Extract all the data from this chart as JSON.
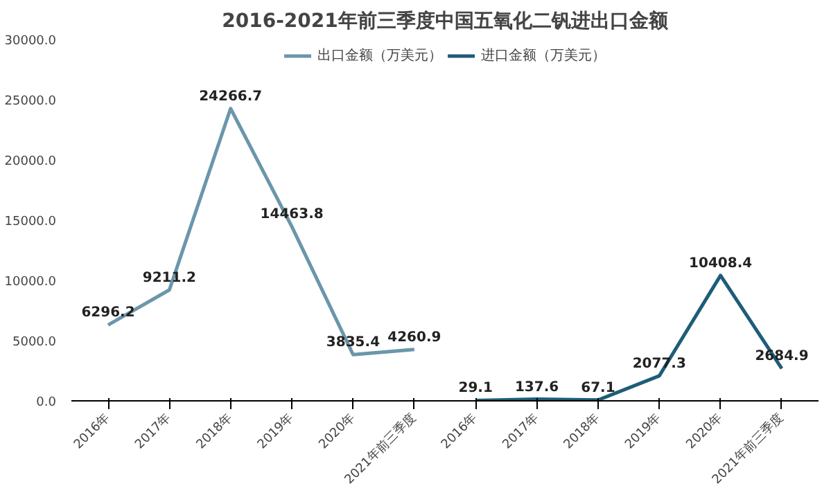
{
  "chart_data": {
    "type": "line",
    "title": "2016-2021年前三季度中国五氧化二钒进出口金额",
    "categories": [
      "2016年",
      "2017年",
      "2018年",
      "2019年",
      "2020年",
      "2021年前三季度",
      "2016年",
      "2017年",
      "2018年",
      "2019年",
      "2020年",
      "2021年前三季度"
    ],
    "series": [
      {
        "name": "出口金额（万美元）",
        "color": "#6b96ab",
        "values": [
          6296.2,
          9211.2,
          24266.7,
          14463.8,
          3835.4,
          4260.9,
          null,
          null,
          null,
          null,
          null,
          null
        ],
        "value_labels": [
          "6296.2",
          "9211.2",
          "24266.7",
          "14463.8",
          "3835.4",
          "4260.9",
          null,
          null,
          null,
          null,
          null,
          null
        ]
      },
      {
        "name": "进口金额（万美元）",
        "color": "#1d5d78",
        "values": [
          null,
          null,
          null,
          null,
          null,
          null,
          29.1,
          137.6,
          67.1,
          2077.3,
          10408.4,
          2684.9
        ],
        "value_labels": [
          null,
          null,
          null,
          null,
          null,
          null,
          "29.1",
          "137.6",
          "67.1",
          "2077.3",
          "10408.4",
          "2684.9"
        ]
      }
    ],
    "ylim": [
      0,
      30000
    ],
    "yticks": [
      {
        "value": 0,
        "label": "0.0"
      },
      {
        "value": 5000,
        "label": "5000.0"
      },
      {
        "value": 10000,
        "label": "10000.0"
      },
      {
        "value": 15000,
        "label": "15000.0"
      },
      {
        "value": 20000,
        "label": "20000.0"
      },
      {
        "value": 25000,
        "label": "25000.0"
      },
      {
        "value": 30000,
        "label": "30000.0"
      }
    ],
    "legend": "top",
    "grid": false,
    "marker": "none",
    "line_style": "solid"
  }
}
